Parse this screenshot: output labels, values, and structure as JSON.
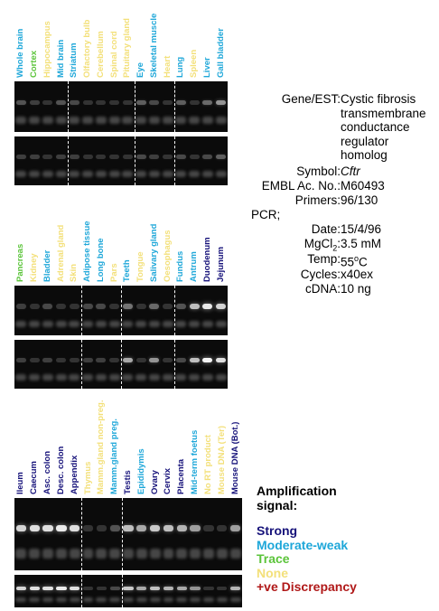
{
  "colors": {
    "strong": "#16127a",
    "moderate": "#1ea7d9",
    "trace": "#5bc43a",
    "none": "#f3e07a",
    "discrepancy": "#b01818"
  },
  "blocks": [
    {
      "lanes": [
        {
          "label": "Whole brain",
          "level": "moderate",
          "band": 0.2,
          "band2": 0.1
        },
        {
          "label": "Cortex",
          "level": "trace",
          "band": 0.1,
          "band2": 0.1
        },
        {
          "label": "Hippocampus",
          "level": "none",
          "band": 0.05,
          "band2": 0.05
        },
        {
          "label": "Mid brain",
          "level": "moderate",
          "band": 0.2,
          "band2": 0.1
        },
        {
          "label": "Striatum",
          "level": "moderate",
          "band": 0.15,
          "band2": 0.1
        },
        {
          "label": "Olfactory bulb",
          "level": "none",
          "band": 0.05,
          "band2": 0.05
        },
        {
          "label": "Cerebellum",
          "level": "none",
          "band": 0.05,
          "band2": 0.05
        },
        {
          "label": "Spinal cord",
          "level": "none",
          "band": 0.05,
          "band2": 0.05
        },
        {
          "label": "Pituitary gland",
          "level": "none",
          "band": 0.05,
          "band2": 0.05
        },
        {
          "label": "Eye",
          "level": "moderate",
          "band": 0.25,
          "band2": 0.15
        },
        {
          "label": "Skeletal muscle",
          "level": "moderate",
          "band": 0.15,
          "band2": 0.1
        },
        {
          "label": "Heart",
          "level": "none",
          "band": 0.05,
          "band2": 0.05
        },
        {
          "label": "Lung",
          "level": "moderate",
          "band": 0.25,
          "band2": 0.15
        },
        {
          "label": "Spleen",
          "level": "none",
          "band": 0.05,
          "band2": 0.05
        },
        {
          "label": "Liver",
          "level": "moderate",
          "band": 0.3,
          "band2": 0.15
        },
        {
          "label": "Gall bladder",
          "level": "moderate",
          "band": 0.5,
          "band2": 0.25
        }
      ],
      "dividers_after": [
        3,
        8,
        11
      ]
    },
    {
      "lanes": [
        {
          "label": "Pancreas",
          "level": "trace",
          "band": 0.1,
          "band2": 0.1
        },
        {
          "label": "Kidney",
          "level": "none",
          "band": 0.05,
          "band2": 0.05
        },
        {
          "label": "Bladder",
          "level": "moderate",
          "band": 0.15,
          "band2": 0.1
        },
        {
          "label": "Adrenal gland",
          "level": "none",
          "band": 0.05,
          "band2": 0.05
        },
        {
          "label": "Skin",
          "level": "none",
          "band": 0.05,
          "band2": 0.05
        },
        {
          "label": "Adipose tissue",
          "level": "moderate",
          "band": 0.15,
          "band2": 0.1
        },
        {
          "label": "Long bone",
          "level": "moderate",
          "band": 0.15,
          "band2": 0.1
        },
        {
          "label": "Pars",
          "level": "none",
          "band": 0.05,
          "band2": 0.05
        },
        {
          "label": "Teeth",
          "level": "moderate",
          "band": 0.35,
          "band2": 0.6
        },
        {
          "label": "Tongue",
          "level": "none",
          "band": 0.05,
          "band2": 0.05
        },
        {
          "label": "Salivary gland",
          "level": "moderate",
          "band": 0.3,
          "band2": 0.5
        },
        {
          "label": "Oesophagus",
          "level": "none",
          "band": 0.05,
          "band2": 0.05
        },
        {
          "label": "Fundus",
          "level": "moderate",
          "band": 0.2,
          "band2": 0.15
        },
        {
          "label": "Antrum",
          "level": "moderate",
          "band": 0.7,
          "band2": 0.7
        },
        {
          "label": "Duodenum",
          "level": "strong",
          "band": 0.9,
          "band2": 0.95
        },
        {
          "label": "Jejunum",
          "level": "strong",
          "band": 0.8,
          "band2": 0.85
        }
      ],
      "dividers_after": [
        4,
        7,
        11
      ]
    },
    {
      "lanes": [
        {
          "label": "Ileum",
          "level": "strong",
          "band": 0.8,
          "band2": 0.8
        },
        {
          "label": "Caecum",
          "level": "strong",
          "band": 0.85,
          "band2": 0.85
        },
        {
          "label": "Asc. colon",
          "level": "strong",
          "band": 0.85,
          "band2": 0.85
        },
        {
          "label": "Desc. colon",
          "level": "strong",
          "band": 0.9,
          "band2": 0.9
        },
        {
          "label": "Appendix",
          "level": "strong",
          "band": 0.85,
          "band2": 0.85
        },
        {
          "label": "Thymus",
          "level": "none",
          "band": 0.05,
          "band2": 0.05
        },
        {
          "label": "Mamm.gland non-preg.",
          "level": "none",
          "band": 0.05,
          "band2": 0.05
        },
        {
          "label": "Mamm.gland preg.",
          "level": "moderate",
          "band": 0.2,
          "band2": 0.15
        },
        {
          "label": "Testis",
          "level": "strong",
          "band": 0.7,
          "band2": 0.75
        },
        {
          "label": "Epididymis",
          "level": "moderate",
          "band": 0.6,
          "band2": 0.6
        },
        {
          "label": "Ovary",
          "level": "strong",
          "band": 0.75,
          "band2": 0.7
        },
        {
          "label": "Cervix",
          "level": "strong",
          "band": 0.7,
          "band2": 0.65
        },
        {
          "label": "Placenta",
          "level": "strong",
          "band": 0.65,
          "band2": 0.6
        },
        {
          "label": "Mid-term foetus",
          "level": "moderate",
          "band": 0.55,
          "band2": 0.5
        },
        {
          "label": "No RT product",
          "level": "none",
          "band": 0.05,
          "band2": 0.05
        },
        {
          "label": "Mouse DNA (Ter)",
          "level": "none",
          "band": 0.05,
          "band2": 0.05
        },
        {
          "label": "Mouse DNA (Bot.)",
          "level": "strong",
          "band": 0.55,
          "band2": 0.65
        }
      ],
      "dividers_after": [
        4,
        7
      ]
    }
  ],
  "info": {
    "gene_key": "Gene/EST:",
    "gene_lines": [
      "Cystic fibrosis",
      "transmembrane",
      "conductance",
      "regulator",
      "homolog"
    ],
    "symbol_key": "Symbol:",
    "symbol_val": "Cftr",
    "embl_key": "EMBL Ac. No.:",
    "embl_val": "M60493",
    "primers_key": "Primers:",
    "primers_val": "96/130",
    "pcr_label": "PCR;",
    "date_key": "Date:",
    "date_val": "15/4/96",
    "mg_key_pre": "MgCl",
    "mg_key_sub": "2",
    "mg_key_post": ":",
    "mg_val": "3.5 mM",
    "temp_key": "Temp:",
    "temp_val_pre": "55",
    "temp_val_sup": "o",
    "temp_val_post": "C",
    "cycles_key": "Cycles:",
    "cycles_val": "x40ex",
    "cdna_key": "cDNA:",
    "cdna_val": "10 ng"
  },
  "legend": {
    "title_1": "Amplification",
    "title_2": "signal:",
    "strong": "Strong",
    "moderate": "Moderate-weak",
    "trace": "Trace",
    "none": "None",
    "discrepancy": "+ve Discrepancy"
  }
}
